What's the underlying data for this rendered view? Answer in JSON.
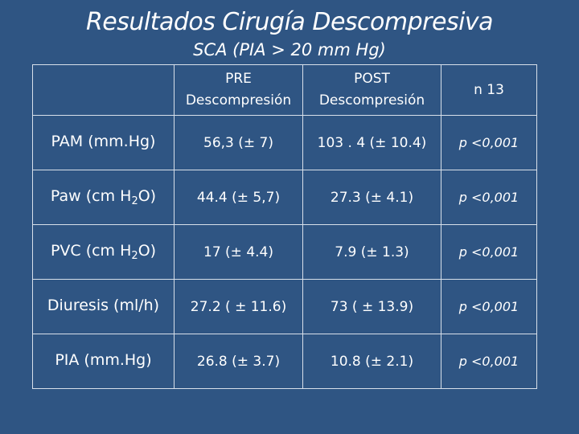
{
  "title": "Resultados Cirugía Descompresiva",
  "subtitle": "SCA  (PIA > 20 mm Hg)",
  "header": {
    "pre_line1": "PRE",
    "pre_line2": "Descompresión",
    "post_line1": "POST",
    "post_line2": "Descompresión",
    "n": "n 13"
  },
  "rows": [
    {
      "label_main": "PAM (mm.Hg)",
      "label_sub": "",
      "label_tail": "",
      "pre": "56,3  (± 7)",
      "post": "103 . 4  (± 10.4)",
      "p": "p <0,001"
    },
    {
      "label_main": "Paw (cm H",
      "label_sub": "2",
      "label_tail": "O)",
      "pre": "44.4 (± 5,7)",
      "post": "27.3  (± 4.1)",
      "p": "p <0,001"
    },
    {
      "label_main": "PVC (cm H",
      "label_sub": "2",
      "label_tail": "O)",
      "pre": "17 (± 4.4)",
      "post": "7.9  (± 1.3)",
      "p": "p <0,001"
    },
    {
      "label_main": "Diuresis (ml/h)",
      "label_sub": "",
      "label_tail": "",
      "pre": "27.2  ( ± 11.6)",
      "post": "73  ( ± 13.9)",
      "p": "p <0,001"
    },
    {
      "label_main": "PIA (mm.Hg)",
      "label_sub": "",
      "label_tail": "",
      "pre": "26.8   (± 3.7)",
      "post": "10.8 (± 2.1)",
      "p": "p <0,001"
    }
  ]
}
